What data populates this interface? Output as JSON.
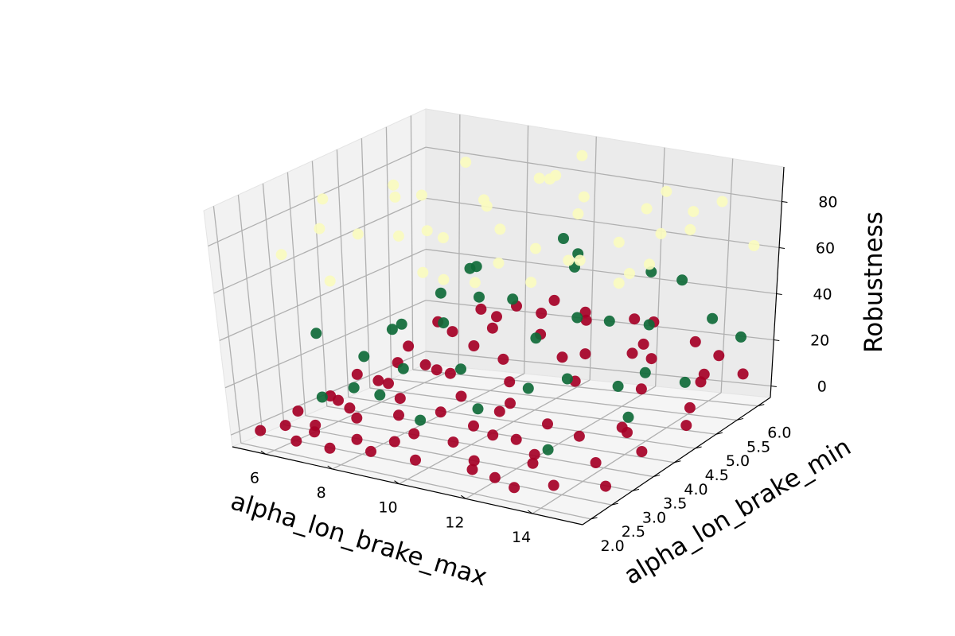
{
  "chart_data": {
    "type": "scatter",
    "projection": "3d",
    "grid": true,
    "xlabel": "alpha_lon_brake_max",
    "ylabel": "alpha_lon_brake_min",
    "zlabel": "Robustness",
    "xlim": [
      5.0,
      15.5
    ],
    "ylim": [
      1.8,
      6.3
    ],
    "zlim": [
      -5,
      95
    ],
    "x_ticks": [
      6,
      8,
      10,
      12,
      14
    ],
    "y_ticks": [
      2.0,
      2.5,
      3.0,
      3.5,
      4.0,
      4.5,
      5.0,
      5.5,
      6.0
    ],
    "z_ticks": [
      0,
      20,
      40,
      60,
      80
    ],
    "x_tick_labels": [
      "6",
      "8",
      "10",
      "12",
      "14"
    ],
    "y_tick_labels": [
      "2.0",
      "2.5",
      "3.0",
      "3.5",
      "4.0",
      "4.5",
      "5.0",
      "5.5",
      "6.0"
    ],
    "z_tick_labels": [
      "0",
      "20",
      "40",
      "60",
      "80"
    ],
    "colors": {
      "low": "#a50026",
      "mid": "#0f6a38",
      "high": "#fafbbf"
    },
    "series": [
      {
        "color_key": "low",
        "points": [
          [
            5.5,
            2.1,
            1
          ],
          [
            6.0,
            2.3,
            3
          ],
          [
            6.5,
            2.6,
            2
          ],
          [
            7.0,
            2.2,
            4
          ],
          [
            7.5,
            2.8,
            6
          ],
          [
            8.0,
            2.4,
            2
          ],
          [
            8.5,
            3.0,
            8
          ],
          [
            9.0,
            2.5,
            3
          ],
          [
            9.5,
            3.2,
            10
          ],
          [
            10.0,
            2.2,
            1
          ],
          [
            10.5,
            2.7,
            5
          ],
          [
            11.0,
            3.4,
            12
          ],
          [
            11.5,
            2.4,
            3
          ],
          [
            12.0,
            3.0,
            7
          ],
          [
            12.5,
            2.1,
            2
          ],
          [
            13.0,
            2.6,
            4
          ],
          [
            13.5,
            3.3,
            9
          ],
          [
            14.0,
            2.3,
            1
          ],
          [
            14.5,
            2.9,
            5
          ],
          [
            15.0,
            3.6,
            3
          ],
          [
            5.8,
            3.5,
            5
          ],
          [
            6.6,
            4.0,
            9
          ],
          [
            7.3,
            3.7,
            12
          ],
          [
            8.1,
            4.2,
            15
          ],
          [
            8.9,
            3.9,
            18
          ],
          [
            9.7,
            4.5,
            20
          ],
          [
            10.4,
            4.1,
            16
          ],
          [
            11.2,
            4.7,
            22
          ],
          [
            12.1,
            4.3,
            18
          ],
          [
            12.9,
            5.0,
            24
          ],
          [
            13.7,
            4.6,
            15
          ],
          [
            14.6,
            5.3,
            12
          ],
          [
            6.2,
            5.0,
            14
          ],
          [
            7.0,
            5.4,
            18
          ],
          [
            7.8,
            5.8,
            22
          ],
          [
            8.6,
            5.1,
            25
          ],
          [
            9.4,
            5.6,
            28
          ],
          [
            10.2,
            6.0,
            26
          ],
          [
            11.0,
            5.4,
            30
          ],
          [
            11.8,
            5.9,
            27
          ],
          [
            12.6,
            5.5,
            22
          ],
          [
            13.4,
            6.1,
            18
          ],
          [
            14.2,
            5.7,
            10
          ],
          [
            15.0,
            6.0,
            8
          ],
          [
            5.6,
            2.9,
            3
          ],
          [
            6.9,
            3.1,
            6
          ],
          [
            7.7,
            2.0,
            1
          ],
          [
            9.2,
            2.8,
            4
          ],
          [
            10.8,
            3.8,
            11
          ],
          [
            12.3,
            3.5,
            9
          ],
          [
            13.9,
            4.0,
            6
          ],
          [
            15.2,
            4.5,
            4
          ],
          [
            6.4,
            4.6,
            11
          ],
          [
            8.3,
            4.9,
            19
          ],
          [
            9.9,
            5.2,
            24
          ],
          [
            11.5,
            5.0,
            21
          ],
          [
            13.1,
            5.3,
            19
          ],
          [
            14.8,
            4.9,
            6
          ],
          [
            7.5,
            4.4,
            14
          ],
          [
            10.6,
            3.1,
            8
          ],
          [
            5.9,
            5.9,
            16
          ],
          [
            6.8,
            6.2,
            20
          ],
          [
            8.0,
            6.1,
            24
          ],
          [
            9.0,
            6.2,
            27
          ],
          [
            12.0,
            6.2,
            23
          ],
          [
            14.0,
            6.2,
            12
          ],
          [
            6.3,
            3.3,
            6
          ],
          [
            7.9,
            3.5,
            9
          ],
          [
            9.6,
            3.6,
            13
          ],
          [
            11.3,
            3.0,
            7
          ],
          [
            12.8,
            2.8,
            5
          ],
          [
            14.3,
            3.8,
            7
          ],
          [
            6.7,
            2.0,
            1
          ],
          [
            8.8,
            2.1,
            2
          ],
          [
            11.7,
            2.2,
            2
          ],
          [
            13.2,
            2.0,
            1
          ],
          [
            15.3,
            2.5,
            2
          ],
          [
            5.7,
            4.2,
            8
          ]
        ]
      },
      {
        "color_key": "mid",
        "points": [
          [
            5.5,
            3.5,
            30
          ],
          [
            6.0,
            4.8,
            22
          ],
          [
            6.5,
            2.8,
            12
          ],
          [
            7.0,
            5.8,
            40
          ],
          [
            7.5,
            3.9,
            35
          ],
          [
            8.0,
            5.2,
            48
          ],
          [
            8.5,
            2.6,
            20
          ],
          [
            9.0,
            4.5,
            44
          ],
          [
            9.5,
            6.0,
            55
          ],
          [
            10.0,
            3.3,
            28
          ],
          [
            10.5,
            5.5,
            50
          ],
          [
            11.0,
            2.9,
            18
          ],
          [
            11.5,
            4.8,
            38
          ],
          [
            12.0,
            6.1,
            45
          ],
          [
            12.5,
            3.8,
            25
          ],
          [
            13.0,
            5.3,
            33
          ],
          [
            13.5,
            4.2,
            20
          ],
          [
            14.0,
            6.0,
            30
          ],
          [
            14.5,
            5.0,
            15
          ],
          [
            15.0,
            5.9,
            25
          ],
          [
            6.2,
            4.0,
            18
          ],
          [
            7.8,
            4.6,
            30
          ],
          [
            9.2,
            5.1,
            38
          ],
          [
            10.8,
            4.4,
            32
          ],
          [
            12.2,
            5.0,
            36
          ],
          [
            13.8,
            4.6,
            22
          ],
          [
            8.3,
            3.3,
            24
          ],
          [
            11.6,
            3.6,
            21
          ],
          [
            14.2,
            3.9,
            12
          ],
          [
            6.8,
            5.3,
            34
          ],
          [
            10.2,
            5.8,
            52
          ],
          [
            12.8,
            6.2,
            42
          ],
          [
            9.8,
            2.5,
            14
          ],
          [
            7.2,
            3.0,
            16
          ],
          [
            13.2,
            2.8,
            8
          ]
        ]
      },
      {
        "color_key": "high",
        "points": [
          [
            5.5,
            4.5,
            62
          ],
          [
            6.0,
            5.5,
            70
          ],
          [
            6.5,
            3.0,
            80
          ],
          [
            7.0,
            4.2,
            88
          ],
          [
            7.5,
            5.8,
            66
          ],
          [
            8.0,
            3.5,
            92
          ],
          [
            8.5,
            5.0,
            78
          ],
          [
            9.0,
            2.8,
            85
          ],
          [
            9.5,
            4.6,
            72
          ],
          [
            10.0,
            6.0,
            90
          ],
          [
            10.5,
            3.8,
            68
          ],
          [
            11.0,
            5.3,
            82
          ],
          [
            11.5,
            2.5,
            75
          ],
          [
            12.0,
            4.4,
            86
          ],
          [
            12.5,
            5.9,
            64
          ],
          [
            13.0,
            3.4,
            79
          ],
          [
            13.5,
            5.2,
            91
          ],
          [
            14.0,
            4.0,
            70
          ],
          [
            14.5,
            5.7,
            84
          ],
          [
            15.0,
            6.1,
            62
          ],
          [
            6.2,
            2.4,
            74
          ],
          [
            7.3,
            5.0,
            60
          ],
          [
            8.8,
            6.2,
            76
          ],
          [
            9.7,
            3.2,
            65
          ],
          [
            10.7,
            4.9,
            94
          ],
          [
            11.8,
            6.1,
            71
          ],
          [
            12.7,
            2.9,
            88
          ],
          [
            13.7,
            4.7,
            66
          ],
          [
            14.8,
            3.1,
            77
          ],
          [
            5.8,
            3.6,
            85
          ],
          [
            7.8,
            2.2,
            69
          ],
          [
            9.3,
            5.6,
            83
          ],
          [
            11.3,
            3.9,
            61
          ],
          [
            13.3,
            6.0,
            74
          ],
          [
            6.6,
            6.0,
            80
          ],
          [
            10.3,
            2.3,
            78
          ],
          [
            12.3,
            5.1,
            68
          ],
          [
            14.3,
            2.6,
            90
          ],
          [
            8.2,
            4.0,
            74
          ],
          [
            15.2,
            4.4,
            87
          ]
        ]
      }
    ]
  }
}
